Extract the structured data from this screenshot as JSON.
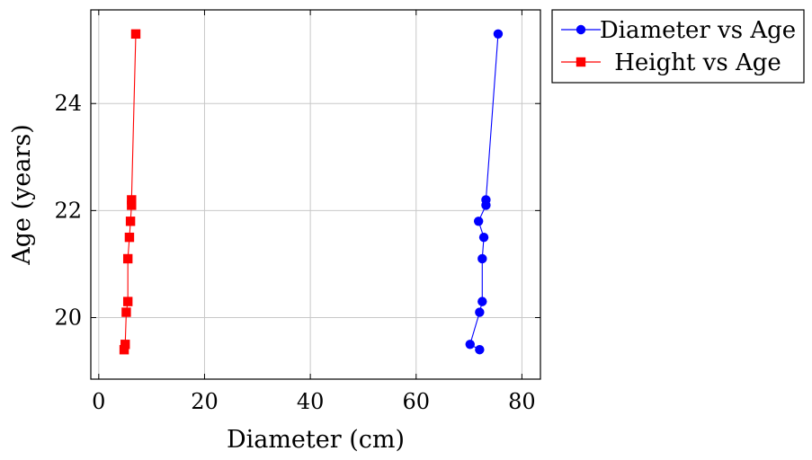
{
  "chart_data": {
    "type": "line",
    "title": "",
    "xlabel": "Diameter (cm)",
    "ylabel": "Age (years)",
    "xlim": [
      -1.5,
      83.5
    ],
    "ylim": [
      18.85,
      25.75
    ],
    "grid": true,
    "legend_position": "outside-top-right",
    "x_ticks": [
      0,
      20,
      40,
      60,
      80
    ],
    "y_ticks": [
      20,
      22,
      24
    ],
    "series": [
      {
        "name": "Diameter vs Age",
        "color": "#0000ff",
        "marker": "circle",
        "points": [
          [
            72.0,
            19.4
          ],
          [
            70.2,
            19.5
          ],
          [
            72.0,
            20.1
          ],
          [
            72.5,
            20.3
          ],
          [
            72.5,
            21.1
          ],
          [
            72.8,
            21.5
          ],
          [
            71.8,
            21.8
          ],
          [
            73.2,
            22.1
          ],
          [
            73.2,
            22.2
          ],
          [
            75.5,
            25.3
          ]
        ]
      },
      {
        "name": "Height vs Age",
        "color": "#ff0000",
        "marker": "square",
        "points": [
          [
            4.8,
            19.4
          ],
          [
            5.0,
            19.5
          ],
          [
            5.2,
            20.1
          ],
          [
            5.5,
            20.3
          ],
          [
            5.5,
            21.1
          ],
          [
            5.8,
            21.5
          ],
          [
            6.0,
            21.8
          ],
          [
            6.2,
            22.1
          ],
          [
            6.2,
            22.2
          ],
          [
            7.0,
            25.3
          ]
        ]
      }
    ]
  }
}
